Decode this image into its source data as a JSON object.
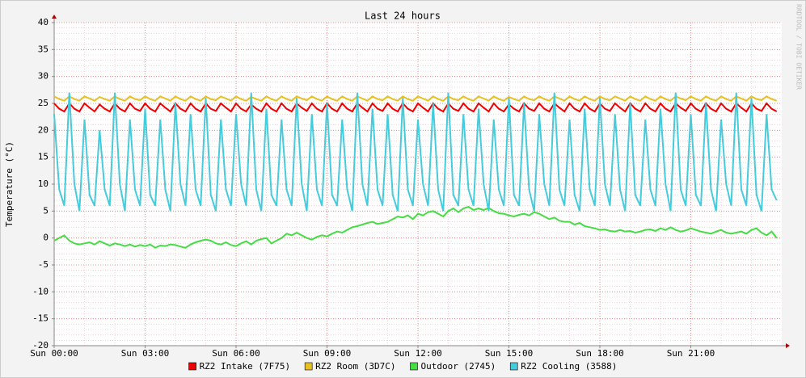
{
  "chart_data": {
    "type": "line",
    "title": "Last 24 hours",
    "y_label": "Temperature (°C)",
    "watermark": "RRDTOOL / TOBI OETIKER",
    "xlim": [
      0,
      1440
    ],
    "xticks": [
      {
        "value": 0,
        "label": "Sun 00:00"
      },
      {
        "value": 180,
        "label": "Sun 03:00"
      },
      {
        "value": 360,
        "label": "Sun 06:00"
      },
      {
        "value": 540,
        "label": "Sun 09:00"
      },
      {
        "value": 720,
        "label": "Sun 12:00"
      },
      {
        "value": 900,
        "label": "Sun 15:00"
      },
      {
        "value": 1080,
        "label": "Sun 18:00"
      },
      {
        "value": 1260,
        "label": "Sun 21:00"
      }
    ],
    "ylim": [
      -20,
      40
    ],
    "yticks": [
      -20,
      -15,
      -10,
      -5,
      0,
      5,
      10,
      15,
      20,
      25,
      30,
      35,
      40
    ],
    "grid": true,
    "x": [
      0,
      10,
      20,
      30,
      40,
      50,
      60,
      70,
      80,
      90,
      100,
      110,
      120,
      130,
      140,
      150,
      160,
      170,
      180,
      190,
      200,
      210,
      220,
      230,
      240,
      250,
      260,
      270,
      280,
      290,
      300,
      310,
      320,
      330,
      340,
      350,
      360,
      370,
      380,
      390,
      400,
      410,
      420,
      430,
      440,
      450,
      460,
      470,
      480,
      490,
      500,
      510,
      520,
      530,
      540,
      550,
      560,
      570,
      580,
      590,
      600,
      610,
      620,
      630,
      640,
      650,
      660,
      670,
      680,
      690,
      700,
      710,
      720,
      730,
      740,
      750,
      760,
      770,
      780,
      790,
      800,
      810,
      820,
      830,
      840,
      850,
      860,
      870,
      880,
      890,
      900,
      910,
      920,
      930,
      940,
      950,
      960,
      970,
      980,
      990,
      1000,
      1010,
      1020,
      1030,
      1040,
      1050,
      1060,
      1070,
      1080,
      1090,
      1100,
      1110,
      1120,
      1130,
      1140,
      1150,
      1160,
      1170,
      1180,
      1190,
      1200,
      1210,
      1220,
      1230,
      1240,
      1250,
      1260,
      1270,
      1280,
      1290,
      1300,
      1310,
      1320,
      1330,
      1340,
      1350,
      1360,
      1370,
      1380,
      1390,
      1400,
      1410,
      1420,
      1430
    ],
    "series": [
      {
        "name": "RZ2 Intake (7F75)",
        "color": "#ee0000",
        "values": [
          25,
          24,
          23.5,
          25,
          24,
          23.5,
          25,
          24.2,
          23.5,
          24.8,
          24,
          23.5,
          25,
          24,
          23.5,
          25,
          24,
          23.6,
          25,
          24,
          23.5,
          25,
          24.2,
          23.5,
          25,
          24,
          23.5,
          25,
          24,
          23.5,
          25,
          24,
          23.6,
          25,
          24.2,
          23.5,
          25,
          24,
          23.5,
          24.8,
          24,
          23.5,
          25,
          24,
          23.5,
          25,
          24,
          23.5,
          25,
          24.2,
          23.6,
          25,
          24,
          23.5,
          25,
          24,
          23.5,
          25,
          24,
          23.5,
          25,
          24.2,
          23.5,
          25,
          24,
          23.6,
          25,
          24,
          23.5,
          25,
          24,
          23.5,
          25,
          24.2,
          23.5,
          25,
          24,
          23.5,
          25,
          24,
          23.6,
          25,
          24,
          23.5,
          25,
          24.2,
          23.5,
          25,
          24,
          23.5,
          24.8,
          24,
          23.5,
          25,
          24,
          23.6,
          25,
          24,
          23.5,
          25,
          24.2,
          23.5,
          25,
          24,
          23.5,
          25,
          24,
          23.5,
          25,
          24,
          23.6,
          25,
          24.2,
          23.5,
          25,
          24,
          23.5,
          25,
          24,
          23.5,
          25,
          24,
          23.5,
          25,
          24.2,
          23.6,
          25,
          24,
          23.5,
          25,
          24,
          23.5,
          25,
          24,
          23.5,
          25,
          24.2,
          23.5,
          25,
          24,
          23.6,
          25,
          24,
          23.5
        ]
      },
      {
        "name": "RZ2 Room (3D7C)",
        "color": "#e8c020",
        "values": [
          26.3,
          25.8,
          25.5,
          26.3,
          25.8,
          25.5,
          26.3,
          25.9,
          25.5,
          26.2,
          25.8,
          25.5,
          26.3,
          25.8,
          25.5,
          26.3,
          25.8,
          25.6,
          26.3,
          25.8,
          25.5,
          26.3,
          25.9,
          25.5,
          26.3,
          25.8,
          25.5,
          26.3,
          25.8,
          25.5,
          26.3,
          25.8,
          25.6,
          26.3,
          25.9,
          25.5,
          26.3,
          25.8,
          25.5,
          26.2,
          25.8,
          25.5,
          26.3,
          25.8,
          25.5,
          26.3,
          25.8,
          25.5,
          26.3,
          25.9,
          25.6,
          26.3,
          25.8,
          25.5,
          26.3,
          25.8,
          25.5,
          26.3,
          25.8,
          25.5,
          26.3,
          25.9,
          25.5,
          26.3,
          25.8,
          25.6,
          26.3,
          25.8,
          25.5,
          26.3,
          25.8,
          25.5,
          26.3,
          25.9,
          25.5,
          26.3,
          25.8,
          25.5,
          26.3,
          25.8,
          25.6,
          26.3,
          25.8,
          25.5,
          26.3,
          25.9,
          25.5,
          26.3,
          25.8,
          25.5,
          26.2,
          25.8,
          25.5,
          26.3,
          25.8,
          25.6,
          26.3,
          25.8,
          25.5,
          26.3,
          25.9,
          25.5,
          26.3,
          25.8,
          25.5,
          26.3,
          25.8,
          25.5,
          26.3,
          25.8,
          25.6,
          26.3,
          25.9,
          25.5,
          26.3,
          25.8,
          25.5,
          26.3,
          25.8,
          25.5,
          26.3,
          25.8,
          25.5,
          26.3,
          25.9,
          25.6,
          26.3,
          25.8,
          25.5,
          26.3,
          25.8,
          25.5,
          26.3,
          25.8,
          25.5,
          26.3,
          25.9,
          25.5,
          26.3,
          25.8,
          25.6,
          26.3,
          25.8,
          25.5
        ]
      },
      {
        "name": "Outdoor (2745)",
        "color": "#44dd44",
        "values": [
          -0.5,
          0,
          0.5,
          -0.5,
          -1,
          -1.2,
          -1,
          -0.8,
          -1.2,
          -0.6,
          -1,
          -1.4,
          -1,
          -1.2,
          -1.5,
          -1.2,
          -1.6,
          -1.3,
          -1.5,
          -1.2,
          -1.8,
          -1.4,
          -1.5,
          -1.2,
          -1.3,
          -1.6,
          -1.8,
          -1.2,
          -0.8,
          -0.5,
          -0.3,
          -0.5,
          -1,
          -1.2,
          -0.8,
          -1.3,
          -1.5,
          -1,
          -0.6,
          -1.2,
          -0.5,
          -0.2,
          0,
          -1,
          -0.5,
          0,
          0.8,
          0.5,
          1,
          0.5,
          0,
          -0.3,
          0.2,
          0.5,
          0.3,
          0.8,
          1.2,
          1,
          1.5,
          2,
          2.2,
          2.5,
          2.8,
          3,
          2.6,
          2.8,
          3,
          3.5,
          4,
          3.8,
          4.2,
          3.5,
          4.5,
          4.2,
          4.8,
          5,
          4.5,
          4,
          5,
          5.5,
          4.8,
          5.5,
          5.8,
          5.2,
          5.5,
          5.2,
          5.6,
          5,
          4.6,
          4.5,
          4.2,
          4,
          4.3,
          4.5,
          4.2,
          4.8,
          4.5,
          4,
          3.5,
          3.8,
          3.2,
          3,
          3,
          2.5,
          2.8,
          2.2,
          2,
          1.8,
          1.5,
          1.6,
          1.3,
          1.2,
          1.5,
          1.2,
          1.3,
          1,
          1.2,
          1.5,
          1.6,
          1.3,
          1.8,
          1.5,
          2,
          1.5,
          1.2,
          1.4,
          1.8,
          1.5,
          1.2,
          1,
          0.8,
          1.2,
          1.5,
          1,
          0.8,
          1,
          1.2,
          0.8,
          1.5,
          1.8,
          1,
          0.5,
          1.2,
          0
        ]
      },
      {
        "name": "RZ2 Cooling (3588)",
        "color": "#44ccdd",
        "values": [
          23,
          9,
          6,
          27,
          10,
          5,
          22,
          8,
          6,
          20,
          9,
          6,
          27,
          10,
          5,
          22,
          9,
          6,
          24,
          8,
          6,
          22,
          9,
          5,
          25,
          10,
          6,
          23,
          9,
          6,
          26,
          8,
          5,
          22,
          9,
          6,
          23,
          10,
          6,
          27,
          9,
          5,
          24,
          8,
          6,
          22,
          9,
          6,
          26,
          10,
          5,
          23,
          9,
          6,
          25,
          8,
          6,
          22,
          9,
          5,
          27,
          10,
          6,
          24,
          9,
          6,
          23,
          8,
          5,
          26,
          9,
          6,
          22,
          10,
          6,
          25,
          9,
          5,
          27,
          8,
          6,
          23,
          9,
          6,
          24,
          10,
          5,
          22,
          9,
          6,
          26,
          8,
          6,
          25,
          9,
          5,
          23,
          10,
          6,
          27,
          9,
          6,
          22,
          8,
          5,
          24,
          9,
          6,
          26,
          10,
          6,
          23,
          9,
          5,
          25,
          8,
          6,
          22,
          9,
          6,
          24,
          10,
          5,
          27,
          9,
          6,
          23,
          8,
          6,
          25,
          9,
          5,
          22,
          10,
          6,
          27,
          9,
          6,
          26,
          8,
          5,
          23,
          9,
          7
        ]
      }
    ]
  }
}
